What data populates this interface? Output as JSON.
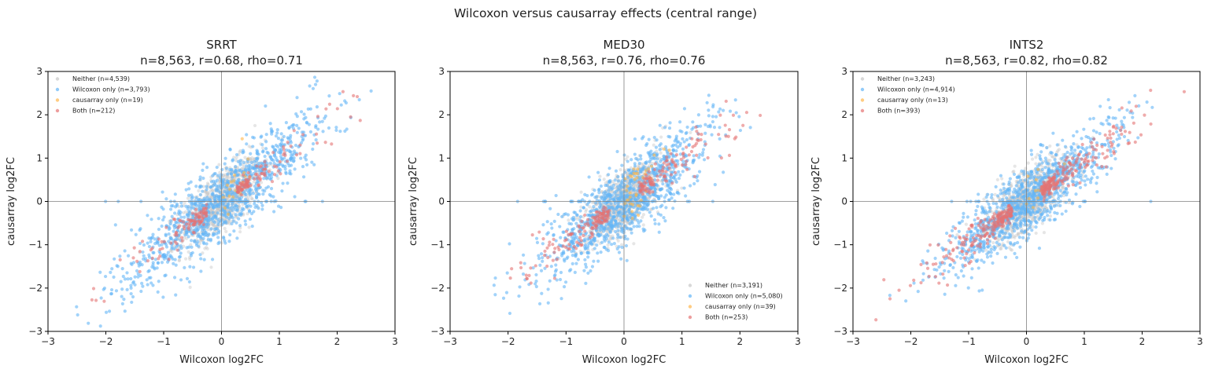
{
  "figure": {
    "suptitle": "Wilcoxon versus causarray effects (central range)"
  },
  "colors": {
    "neither": "#c8c8c8",
    "wilcoxon_only": "#64b5f6",
    "causarray_only": "#ffb74d",
    "both": "#e57373",
    "axis": "#000000",
    "zero_line": "#808080"
  },
  "chart_data": [
    {
      "type": "scatter",
      "gene": "SRRT",
      "title": "SRRT",
      "subtitle": "n=8,563, r=0.68, rho=0.71",
      "xlabel": "Wilcoxon log2FC",
      "ylabel": "causarray log2FC",
      "xlim": [
        -3,
        3
      ],
      "ylim": [
        -3,
        3
      ],
      "xticks": [
        -3,
        -2,
        -1,
        0,
        1,
        2,
        3
      ],
      "yticks": [
        -3,
        -2,
        -1,
        0,
        1,
        2,
        3
      ],
      "xtick_labels": [
        "−3",
        "−2",
        "−1",
        "0",
        "1",
        "2",
        "3"
      ],
      "ytick_labels": [
        "−3",
        "−2",
        "−1",
        "0",
        "1",
        "2",
        "3"
      ],
      "legend_position": "top-left",
      "reference_lines": {
        "x": 0,
        "y": 0
      },
      "series": [
        {
          "key": "neither",
          "name": "Neither (n=4,539)",
          "count": 4539,
          "color": "#c8c8c8",
          "slope": 0.95,
          "spread": 0.35,
          "x_sd": 0.35
        },
        {
          "key": "wilcoxon_only",
          "name": "Wilcoxon only (n=3,793)",
          "count": 3793,
          "color": "#64b5f6",
          "slope": 1.0,
          "spread": 0.45,
          "x_sd": 0.9
        },
        {
          "key": "causarray_only",
          "name": "causarray only (n=19)",
          "count": 19,
          "color": "#ffb74d",
          "slope": 1.6,
          "spread": 0.3,
          "x_sd": 0.3
        },
        {
          "key": "both",
          "name": "Both (n=212)",
          "count": 212,
          "color": "#e57373",
          "slope": 1.0,
          "spread": 0.25,
          "x_sd": 1.0
        }
      ]
    },
    {
      "type": "scatter",
      "gene": "MED30",
      "title": "MED30",
      "subtitle": "n=8,563, r=0.76, rho=0.76",
      "xlabel": "Wilcoxon log2FC",
      "ylabel": "causarray log2FC",
      "xlim": [
        -3,
        3
      ],
      "ylim": [
        -3,
        3
      ],
      "xticks": [
        -3,
        -2,
        -1,
        0,
        1,
        2,
        3
      ],
      "yticks": [
        -3,
        -2,
        -1,
        0,
        1,
        2,
        3
      ],
      "xtick_labels": [
        "−3",
        "−2",
        "−1",
        "0",
        "1",
        "2",
        "3"
      ],
      "ytick_labels": [
        "−3",
        "−2",
        "−1",
        "0",
        "1",
        "2",
        "3"
      ],
      "legend_position": "bottom-right",
      "reference_lines": {
        "x": 0,
        "y": 0
      },
      "series": [
        {
          "key": "neither",
          "name": "Neither (n=3,191)",
          "count": 3191,
          "color": "#c8c8c8",
          "slope": 0.95,
          "spread": 0.35,
          "x_sd": 0.35
        },
        {
          "key": "wilcoxon_only",
          "name": "Wilcoxon only (n=5,080)",
          "count": 5080,
          "color": "#64b5f6",
          "slope": 1.0,
          "spread": 0.45,
          "x_sd": 0.75
        },
        {
          "key": "causarray_only",
          "name": "causarray only (n=39)",
          "count": 39,
          "color": "#ffb74d",
          "slope": 1.6,
          "spread": 0.3,
          "x_sd": 0.3
        },
        {
          "key": "both",
          "name": "Both (n=253)",
          "count": 253,
          "color": "#e57373",
          "slope": 1.0,
          "spread": 0.25,
          "x_sd": 0.9
        }
      ]
    },
    {
      "type": "scatter",
      "gene": "INTS2",
      "title": "INTS2",
      "subtitle": "n=8,563, r=0.82, rho=0.82",
      "xlabel": "Wilcoxon log2FC",
      "ylabel": "causarray log2FC",
      "xlim": [
        -3,
        3
      ],
      "ylim": [
        -3,
        3
      ],
      "xticks": [
        -3,
        -2,
        -1,
        0,
        1,
        2,
        3
      ],
      "yticks": [
        -3,
        -2,
        -1,
        0,
        1,
        2,
        3
      ],
      "xtick_labels": [
        "−3",
        "−2",
        "−1",
        "0",
        "1",
        "2",
        "3"
      ],
      "ytick_labels": [
        "−3",
        "−2",
        "−1",
        "0",
        "1",
        "2",
        "3"
      ],
      "legend_position": "top-left",
      "reference_lines": {
        "x": 0,
        "y": 0
      },
      "series": [
        {
          "key": "neither",
          "name": "Neither (n=3,243)",
          "count": 3243,
          "color": "#c8c8c8",
          "slope": 0.95,
          "spread": 0.35,
          "x_sd": 0.35
        },
        {
          "key": "wilcoxon_only",
          "name": "Wilcoxon only (n=4,914)",
          "count": 4914,
          "color": "#64b5f6",
          "slope": 1.0,
          "spread": 0.4,
          "x_sd": 0.75
        },
        {
          "key": "causarray_only",
          "name": "causarray only (n=13)",
          "count": 13,
          "color": "#ffb74d",
          "slope": 1.6,
          "spread": 0.3,
          "x_sd": 0.3
        },
        {
          "key": "both",
          "name": "Both (n=393)",
          "count": 393,
          "color": "#e57373",
          "slope": 1.0,
          "spread": 0.2,
          "x_sd": 0.9
        }
      ]
    }
  ]
}
